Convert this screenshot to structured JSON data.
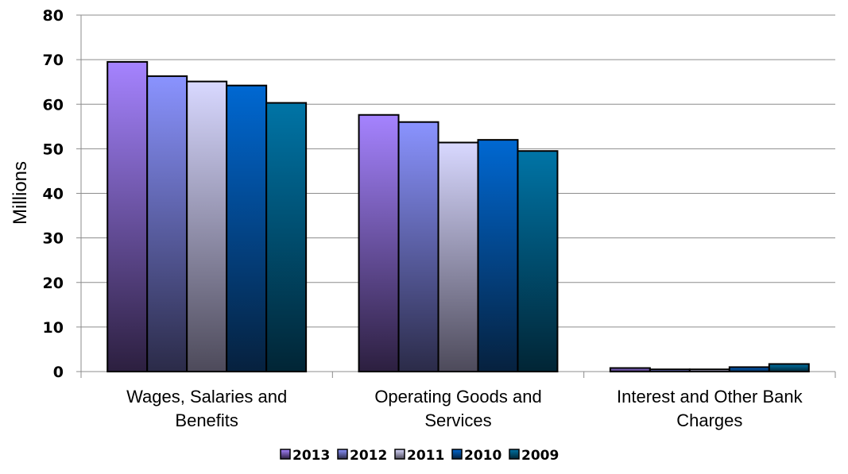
{
  "chart_data": {
    "type": "bar",
    "ylabel": "Millions",
    "ylim": [
      0,
      80
    ],
    "yticks": [
      "0",
      "10",
      "20",
      "30",
      "40",
      "50",
      "60",
      "70",
      "80"
    ],
    "categories": [
      [
        "Wages, Salaries and",
        "Benefits"
      ],
      [
        "Operating Goods and",
        "Services"
      ],
      [
        "Interest and Other Bank",
        "Charges"
      ]
    ],
    "series": [
      {
        "name": "2013",
        "values": [
          69.5,
          57.6,
          0.8
        ],
        "colors": [
          "#a583ff",
          "#2c1f3f"
        ]
      },
      {
        "name": "2012",
        "values": [
          66.3,
          56.0,
          0.5
        ],
        "colors": [
          "#8a93ff",
          "#2b2b48"
        ]
      },
      {
        "name": "2011",
        "values": [
          65.1,
          51.4,
          0.5
        ],
        "colors": [
          "#d8d8ff",
          "#4d4a5a"
        ]
      },
      {
        "name": "2010",
        "values": [
          64.2,
          52.0,
          1.0
        ],
        "colors": [
          "#0068d2",
          "#06213e"
        ]
      },
      {
        "name": "2009",
        "values": [
          60.3,
          49.5,
          1.7
        ],
        "colors": [
          "#0074a6",
          "#012535"
        ]
      }
    ],
    "grid": true,
    "legend_position": "bottom"
  }
}
